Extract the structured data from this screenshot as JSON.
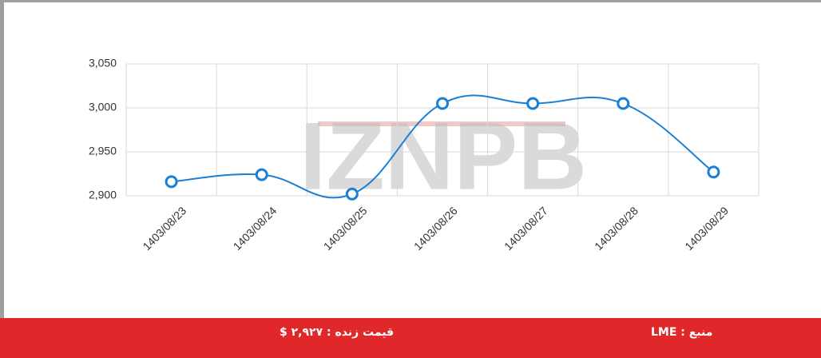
{
  "chart_data": {
    "type": "line",
    "categories": [
      "1403/08/23",
      "1403/08/24",
      "1403/08/25",
      "1403/08/26",
      "1403/08/27",
      "1403/08/28",
      "1403/08/29"
    ],
    "values": [
      2916,
      2924,
      2902,
      3005,
      3005,
      3005,
      2927
    ],
    "color": "#1a7fd6",
    "ylim": [
      2900,
      3050
    ],
    "yticks": [
      {
        "value": 2900,
        "label": "2,900"
      },
      {
        "value": 2950,
        "label": "2,950"
      },
      {
        "value": 3000,
        "label": "3,000"
      },
      {
        "value": 3050,
        "label": "3,050"
      }
    ],
    "grid": true
  },
  "watermark": "IZNPB",
  "footer": {
    "live_price": "قیمت زنده : ۲,۹۲۷ $",
    "source": "منبع : LME"
  }
}
